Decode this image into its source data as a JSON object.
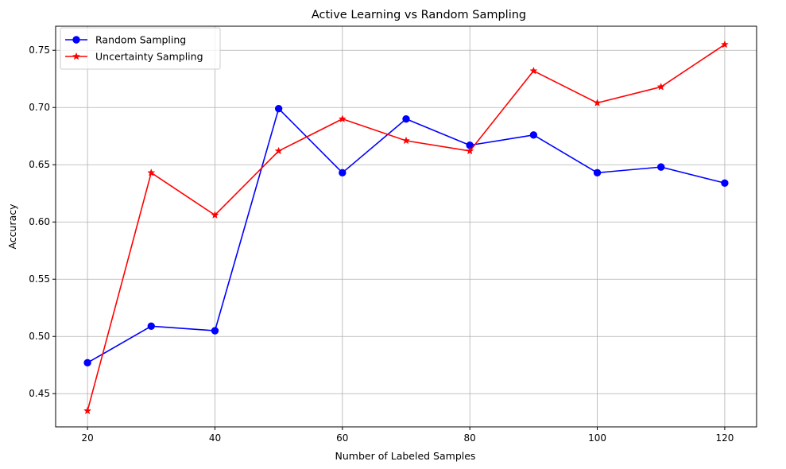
{
  "chart_data": {
    "type": "line",
    "title": "Active Learning vs Random Sampling",
    "xlabel": "Number of Labeled Samples",
    "ylabel": "Accuracy",
    "xlim": [
      15,
      125
    ],
    "ylim": [
      0.421,
      0.771
    ],
    "xticks": [
      20,
      40,
      60,
      80,
      100,
      120
    ],
    "yticks": [
      0.45,
      0.5,
      0.55,
      0.6,
      0.65,
      0.7,
      0.75
    ],
    "ytick_labels": [
      "0.45",
      "0.50",
      "0.55",
      "0.60",
      "0.65",
      "0.70",
      "0.75"
    ],
    "grid": true,
    "legend": "top-left",
    "x": [
      20,
      30,
      40,
      50,
      60,
      70,
      80,
      90,
      100,
      110,
      120
    ],
    "series": [
      {
        "name": "Random Sampling",
        "color": "#0000ff",
        "marker": "circle",
        "values": [
          0.477,
          0.509,
          0.505,
          0.699,
          0.643,
          0.69,
          0.667,
          0.676,
          0.643,
          0.648,
          0.634
        ]
      },
      {
        "name": "Uncertainty Sampling",
        "color": "#ff0000",
        "marker": "star",
        "values": [
          0.435,
          0.643,
          0.606,
          0.662,
          0.69,
          0.671,
          0.662,
          0.732,
          0.704,
          0.718,
          0.755
        ]
      }
    ]
  }
}
